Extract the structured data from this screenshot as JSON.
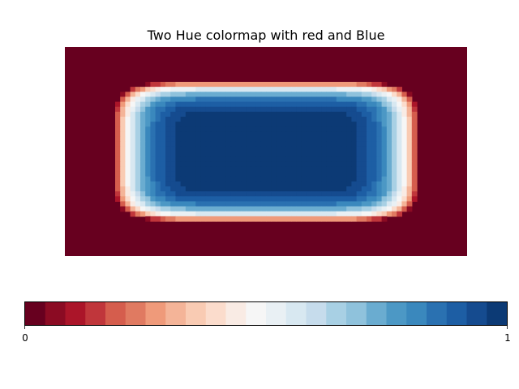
{
  "chart_data": {
    "type": "heatmap",
    "title": "Two Hue colormap with red and Blue",
    "xlabel": "",
    "ylabel": "",
    "colormap_name": "RdBu",
    "levels": 26,
    "colors": [
      "#67001f",
      "#8b0b23",
      "#ab1529",
      "#c0363b",
      "#d55d4d",
      "#e07a61",
      "#ef9a7a",
      "#f4b498",
      "#f9cbb3",
      "#fbdccc",
      "#f9ebe4",
      "#f6f6f6",
      "#e9f0f4",
      "#d8e8f1",
      "#c6dcec",
      "#a8d0e4",
      "#8fc2dc",
      "#6aacd0",
      "#4c98c5",
      "#3a88bd",
      "#2a71b1",
      "#1d5ea4",
      "#154b8f",
      "#0c3a75"
    ],
    "field_grid": {
      "x_cells": 80,
      "y_cells": 42,
      "exponent": 6,
      "half_width_fraction": 0.765,
      "half_height_fraction": 0.68
    },
    "grid": false,
    "colorbar": {
      "orientation": "horizontal",
      "ticks": [
        0,
        1
      ],
      "tick_labels": [
        "0",
        "1"
      ],
      "range": [
        0,
        1
      ]
    }
  }
}
